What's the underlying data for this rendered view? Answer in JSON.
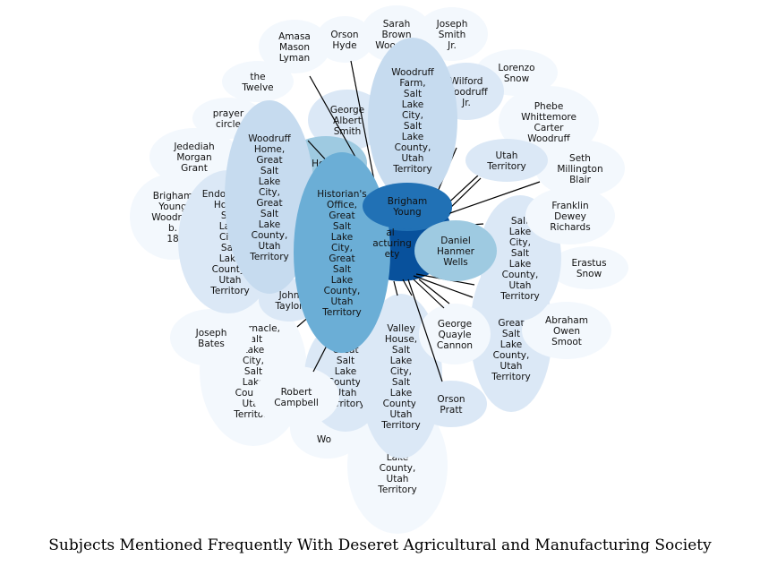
{
  "title": "Subjects Mentioned Frequently With Deseret Agricultural and Manufacturing Society",
  "colors": {
    "node_light": "#f3f8fd",
    "node_pale": "#dbe8f6",
    "node_soft": "#c6dbef",
    "node_mid": "#9ecae1",
    "node_blue": "#6baed6",
    "node_strong": "#2171b5",
    "node_dark": "#08519c",
    "edge": "#000000"
  },
  "center": {
    "label": "Deseret Agricultural and Manufacturing Society",
    "visible_text": "al\nacturing\nety"
  },
  "nodes": [
    {
      "id": "n1",
      "label": "Amasa Mason Lyman",
      "tone": "light"
    },
    {
      "id": "n2",
      "label": "Orson Hyde",
      "tone": "light"
    },
    {
      "id": "n3",
      "label": "Sarah Brown Woodruff",
      "tone": "light"
    },
    {
      "id": "n4",
      "label": "Joseph Smith Jr.",
      "tone": "light"
    },
    {
      "id": "n5",
      "label": "Lorenzo Snow",
      "tone": "light"
    },
    {
      "id": "n6",
      "label": "Wilford Woodruff Jr.",
      "tone": "pale"
    },
    {
      "id": "n7",
      "label": "the Twelve",
      "tone": "light"
    },
    {
      "id": "n8",
      "label": "prayer circle",
      "tone": "light"
    },
    {
      "id": "n9",
      "label": "Phebe Whittemore Carter Woodruff",
      "tone": "light"
    },
    {
      "id": "n10",
      "label": "George Albert Smith",
      "tone": "pale"
    },
    {
      "id": "n11",
      "label": "Jedediah Morgan Grant",
      "tone": "light"
    },
    {
      "id": "n12",
      "label": "Heber",
      "tone": "mid"
    },
    {
      "id": "n13",
      "label": "Utah Territory",
      "tone": "pale"
    },
    {
      "id": "n14",
      "label": "Seth Millington Blair",
      "tone": "light"
    },
    {
      "id": "n15",
      "label": "Brigham Young Woodruff b. 18",
      "tone": "light"
    },
    {
      "id": "n16",
      "label": "Endowment House, Salt Lake City, Salt Lake County, Utah Territory",
      "tone": "pale"
    },
    {
      "id": "n17",
      "label": "Franklin Dewey Richards",
      "tone": "light"
    },
    {
      "id": "n18",
      "label": "Brigham Young",
      "tone": "strong"
    },
    {
      "id": "n19",
      "label": "Erastus Snow",
      "tone": "light"
    },
    {
      "id": "n20",
      "label": "Daniel Hanmer Wells",
      "tone": "mid"
    },
    {
      "id": "n21",
      "label": "Salt Lake City, Salt Lake County, Utah Territory",
      "tone": "pale"
    },
    {
      "id": "n22",
      "label": "John Taylor",
      "tone": "pale"
    },
    {
      "id": "n23",
      "label": "Abraham Owen Smoot",
      "tone": "light"
    },
    {
      "id": "n24",
      "label": "Joseph Bates",
      "tone": "light"
    },
    {
      "id": "n25",
      "label": "George Quayle Cannon",
      "tone": "light"
    },
    {
      "id": "n26",
      "label": "Great Salt Lake County, Utah Territory",
      "tone": "pale"
    },
    {
      "id": "n27",
      "label": "Robert Campbell",
      "tone": "light"
    },
    {
      "id": "n28",
      "label": "Orson Pratt",
      "tone": "pale"
    },
    {
      "id": "n29",
      "label": "Wo",
      "tone": "light"
    },
    {
      "id": "n30",
      "label": "Lake County, Utah Territory",
      "tone": "light"
    },
    {
      "id": "n31",
      "label": "Woodruff Farm, Salt Lake City, Salt Lake County, Utah Territory",
      "tone": "soft"
    },
    {
      "id": "n32",
      "label": "Woodruff Home, Great Salt Lake City, Great Salt Lake County, Utah Territory",
      "tone": "soft"
    },
    {
      "id": "n33",
      "label": "Historian's Office, Great Salt Lake City, Great Salt Lake County, Utah Territory",
      "tone": "blue"
    },
    {
      "id": "n34",
      "label": "Great Salt Lake City, Salt Lake County, Utah Territory",
      "tone": "pale"
    },
    {
      "id": "n35",
      "label": "Tabernacle, Salt Lake City, Salt Lake County, Utah Territory",
      "tone": "light"
    },
    {
      "id": "n36",
      "label": "Valley House, Salt Lake City, Salt Lake County, Utah Territory",
      "tone": "pale"
    }
  ]
}
